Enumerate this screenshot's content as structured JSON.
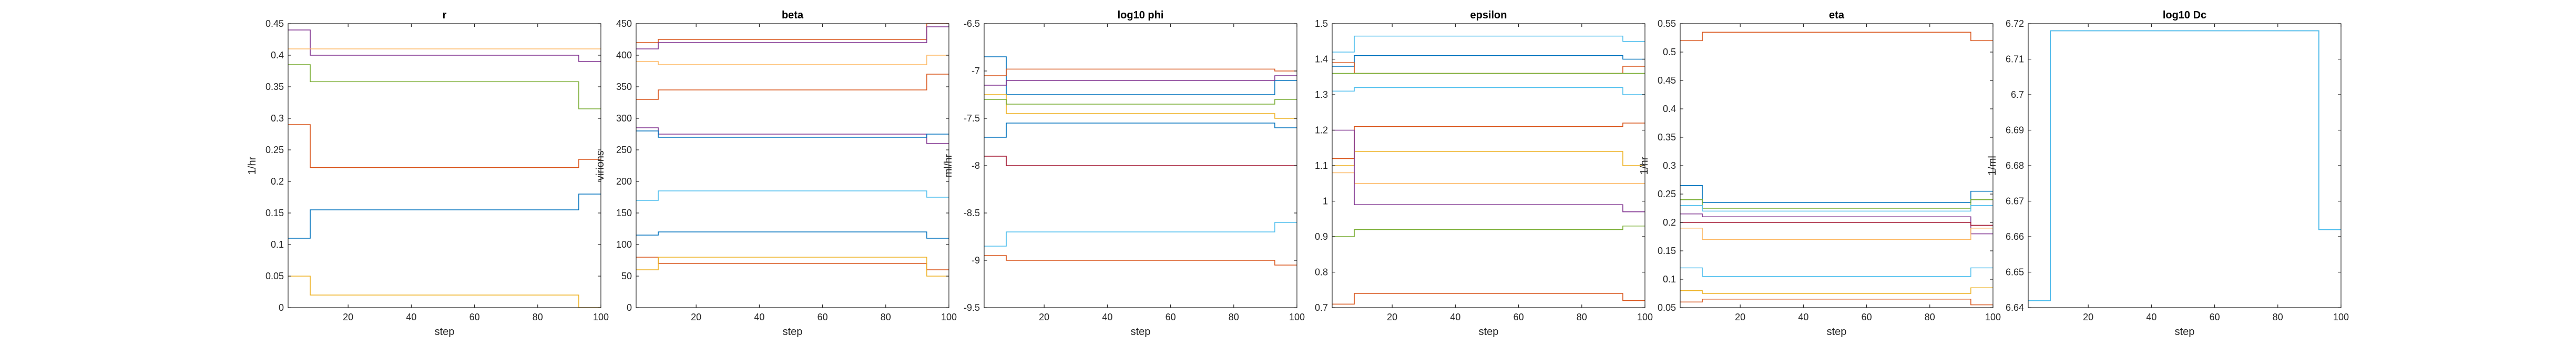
{
  "chart_data": [
    {
      "type": "line",
      "title": "r",
      "xlabel": "step",
      "ylabel": "1/hr",
      "xlim": [
        1,
        100
      ],
      "ylim": [
        0,
        0.45
      ],
      "xticks": [
        20,
        40,
        60,
        80,
        100
      ],
      "xtick_labels": [
        "20",
        "40",
        "60",
        "80",
        "100"
      ],
      "yticks": [
        0,
        0.05,
        0.1,
        0.15,
        0.2,
        0.25,
        0.3,
        0.35,
        0.4,
        0.45
      ],
      "ytick_labels": [
        "0",
        "0.05",
        "0.1",
        "0.15",
        "0.2",
        "0.25",
        "0.3",
        "0.35",
        "0.4",
        "0.45"
      ],
      "series": [
        {
          "color": "#0072BD",
          "x": [
            1,
            8,
            8,
            93,
            93,
            100
          ],
          "y": [
            0.11,
            0.11,
            0.155,
            0.155,
            0.18,
            0.18
          ]
        },
        {
          "color": "#D95319",
          "x": [
            1,
            8,
            8,
            93,
            93,
            100
          ],
          "y": [
            0.29,
            0.29,
            0.222,
            0.222,
            0.235,
            0.235
          ]
        },
        {
          "color": "#EDB120",
          "x": [
            1,
            8,
            8,
            93,
            93,
            100
          ],
          "y": [
            0.05,
            0.05,
            0.02,
            0.02,
            0.0,
            0.0
          ]
        },
        {
          "color": "#7E2F8E",
          "x": [
            1,
            8,
            8,
            93,
            93,
            100
          ],
          "y": [
            0.44,
            0.44,
            0.4,
            0.4,
            0.39,
            0.39
          ]
        },
        {
          "color": "#77AC30",
          "x": [
            1,
            8,
            8,
            93,
            93,
            100
          ],
          "y": [
            0.385,
            0.385,
            0.358,
            0.358,
            0.315,
            0.315
          ]
        },
        {
          "color": "#FDB863",
          "x": [
            1,
            8,
            8,
            93,
            93,
            100
          ],
          "y": [
            0.41,
            0.41,
            0.41,
            0.41,
            0.41,
            0.41
          ]
        }
      ]
    },
    {
      "type": "line",
      "title": "beta",
      "xlabel": "step",
      "ylabel": "virions",
      "xlim": [
        1,
        100
      ],
      "ylim": [
        0,
        450
      ],
      "xticks": [
        20,
        40,
        60,
        80,
        100
      ],
      "xtick_labels": [
        "20",
        "40",
        "60",
        "80",
        "100"
      ],
      "yticks": [
        0,
        50,
        100,
        150,
        200,
        250,
        300,
        350,
        400,
        450
      ],
      "ytick_labels": [
        "0",
        "50",
        "100",
        "150",
        "200",
        "250",
        "300",
        "350",
        "400",
        "450"
      ],
      "series": [
        {
          "color": "#D95319",
          "x": [
            1,
            8,
            8,
            93,
            93,
            100
          ],
          "y": [
            420,
            420,
            425,
            425,
            450,
            450
          ]
        },
        {
          "color": "#7E2F8E",
          "x": [
            1,
            8,
            8,
            93,
            93,
            100
          ],
          "y": [
            410,
            410,
            420,
            420,
            445,
            445
          ]
        },
        {
          "color": "#FDB863",
          "x": [
            1,
            8,
            8,
            93,
            93,
            100
          ],
          "y": [
            390,
            390,
            385,
            385,
            400,
            400
          ]
        },
        {
          "color": "#D95319",
          "x": [
            1,
            8,
            8,
            93,
            93,
            100
          ],
          "y": [
            330,
            330,
            345,
            345,
            370,
            370
          ]
        },
        {
          "color": "#7E2F8E",
          "x": [
            1,
            8,
            8,
            93,
            93,
            100
          ],
          "y": [
            285,
            285,
            275,
            275,
            260,
            260
          ]
        },
        {
          "color": "#0072BD",
          "x": [
            1,
            8,
            8,
            93,
            93,
            100
          ],
          "y": [
            280,
            280,
            270,
            270,
            275,
            275
          ]
        },
        {
          "color": "#4DBEEE",
          "x": [
            1,
            8,
            8,
            93,
            93,
            100
          ],
          "y": [
            170,
            170,
            185,
            185,
            175,
            175
          ]
        },
        {
          "color": "#0072BD",
          "x": [
            1,
            8,
            8,
            93,
            93,
            100
          ],
          "y": [
            115,
            115,
            120,
            120,
            110,
            110
          ]
        },
        {
          "color": "#D95319",
          "x": [
            1,
            8,
            8,
            93,
            93,
            100
          ],
          "y": [
            80,
            80,
            70,
            70,
            60,
            60
          ]
        },
        {
          "color": "#EDB120",
          "x": [
            1,
            8,
            8,
            93,
            93,
            100
          ],
          "y": [
            60,
            60,
            80,
            80,
            50,
            50
          ]
        }
      ]
    },
    {
      "type": "line",
      "title": "log10 phi",
      "xlabel": "step",
      "ylabel": "ml/hr",
      "xlim": [
        1,
        100
      ],
      "ylim": [
        -9.5,
        -6.5
      ],
      "xticks": [
        20,
        40,
        60,
        80,
        100
      ],
      "xtick_labels": [
        "20",
        "40",
        "60",
        "80",
        "100"
      ],
      "yticks": [
        -9.5,
        -9,
        -8.5,
        -8,
        -7.5,
        -7,
        -6.5
      ],
      "ytick_labels": [
        "-9.5",
        "-9",
        "-8.5",
        "-8",
        "-7.5",
        "-7",
        "-6.5"
      ],
      "series": [
        {
          "color": "#0072BD",
          "x": [
            1,
            8,
            8,
            93,
            93,
            100
          ],
          "y": [
            -6.85,
            -6.85,
            -7.25,
            -7.25,
            -7.1,
            -7.1
          ]
        },
        {
          "color": "#D95319",
          "x": [
            1,
            8,
            8,
            93,
            93,
            100
          ],
          "y": [
            -7.05,
            -7.05,
            -6.98,
            -6.98,
            -7.0,
            -7.0
          ]
        },
        {
          "color": "#7E2F8E",
          "x": [
            1,
            8,
            8,
            93,
            93,
            100
          ],
          "y": [
            -7.15,
            -7.15,
            -7.1,
            -7.1,
            -7.05,
            -7.05
          ]
        },
        {
          "color": "#EDB120",
          "x": [
            1,
            8,
            8,
            93,
            93,
            100
          ],
          "y": [
            -7.25,
            -7.25,
            -7.45,
            -7.45,
            -7.5,
            -7.5
          ]
        },
        {
          "color": "#77AC30",
          "x": [
            1,
            8,
            8,
            93,
            93,
            100
          ],
          "y": [
            -7.3,
            -7.3,
            -7.35,
            -7.35,
            -7.3,
            -7.3
          ]
        },
        {
          "color": "#0072BD",
          "x": [
            1,
            8,
            8,
            93,
            93,
            100
          ],
          "y": [
            -7.7,
            -7.7,
            -7.55,
            -7.55,
            -7.6,
            -7.6
          ]
        },
        {
          "color": "#A2142F",
          "x": [
            1,
            8,
            8,
            93,
            93,
            100
          ],
          "y": [
            -7.9,
            -7.9,
            -8.0,
            -8.0,
            -8.0,
            -8.0
          ]
        },
        {
          "color": "#4DBEEE",
          "x": [
            1,
            8,
            8,
            93,
            93,
            100
          ],
          "y": [
            -8.85,
            -8.85,
            -8.7,
            -8.7,
            -8.6,
            -8.6
          ]
        },
        {
          "color": "#D95319",
          "x": [
            1,
            8,
            8,
            93,
            93,
            100
          ],
          "y": [
            -8.95,
            -8.95,
            -9.0,
            -9.0,
            -9.05,
            -9.05
          ]
        }
      ]
    },
    {
      "type": "line",
      "title": "epsilon",
      "xlabel": "step",
      "ylabel": "",
      "xlim": [
        1,
        100
      ],
      "ylim": [
        0.7,
        1.5
      ],
      "xticks": [
        20,
        40,
        60,
        80,
        100
      ],
      "xtick_labels": [
        "20",
        "40",
        "60",
        "80",
        "100"
      ],
      "yticks": [
        0.7,
        0.8,
        0.9,
        1,
        1.1,
        1.2,
        1.3,
        1.4,
        1.5
      ],
      "ytick_labels": [
        "0.7",
        "0.8",
        "0.9",
        "1",
        "1.1",
        "1.2",
        "1.3",
        "1.4",
        "1.5"
      ],
      "series": [
        {
          "color": "#4DBEEE",
          "x": [
            1,
            8,
            8,
            93,
            93,
            100
          ],
          "y": [
            1.42,
            1.42,
            1.465,
            1.465,
            1.45,
            1.45
          ]
        },
        {
          "color": "#0072BD",
          "x": [
            1,
            8,
            8,
            93,
            93,
            100
          ],
          "y": [
            1.38,
            1.38,
            1.41,
            1.41,
            1.4,
            1.4
          ]
        },
        {
          "color": "#D95319",
          "x": [
            1,
            8,
            8,
            93,
            93,
            100
          ],
          "y": [
            1.39,
            1.39,
            1.36,
            1.36,
            1.38,
            1.38
          ]
        },
        {
          "color": "#77AC30",
          "x": [
            1,
            8,
            8,
            93,
            93,
            100
          ],
          "y": [
            1.36,
            1.36,
            1.36,
            1.36,
            1.36,
            1.36
          ]
        },
        {
          "color": "#4DBEEE",
          "x": [
            1,
            8,
            8,
            93,
            93,
            100
          ],
          "y": [
            1.31,
            1.31,
            1.32,
            1.32,
            1.3,
            1.3
          ]
        },
        {
          "color": "#D95319",
          "x": [
            1,
            8,
            8,
            93,
            93,
            100
          ],
          "y": [
            1.12,
            1.12,
            1.21,
            1.21,
            1.22,
            1.22
          ]
        },
        {
          "color": "#EDB120",
          "x": [
            1,
            8,
            8,
            93,
            93,
            100
          ],
          "y": [
            1.1,
            1.1,
            1.14,
            1.14,
            1.1,
            1.1
          ]
        },
        {
          "color": "#FDB863",
          "x": [
            1,
            8,
            8,
            93,
            93,
            100
          ],
          "y": [
            1.08,
            1.08,
            1.05,
            1.05,
            1.05,
            1.05
          ]
        },
        {
          "color": "#7E2F8E",
          "x": [
            1,
            8,
            8,
            93,
            93,
            100
          ],
          "y": [
            1.2,
            1.2,
            0.99,
            0.99,
            0.97,
            0.97
          ]
        },
        {
          "color": "#77AC30",
          "x": [
            1,
            8,
            8,
            93,
            93,
            100
          ],
          "y": [
            0.9,
            0.9,
            0.92,
            0.92,
            0.93,
            0.93
          ]
        },
        {
          "color": "#D95319",
          "x": [
            1,
            8,
            8,
            93,
            93,
            100
          ],
          "y": [
            0.71,
            0.71,
            0.74,
            0.74,
            0.72,
            0.72
          ]
        }
      ]
    },
    {
      "type": "line",
      "title": "eta",
      "xlabel": "step",
      "ylabel": "1/hr",
      "xlim": [
        1,
        100
      ],
      "ylim": [
        0.05,
        0.55
      ],
      "xticks": [
        20,
        40,
        60,
        80,
        100
      ],
      "xtick_labels": [
        "20",
        "40",
        "60",
        "80",
        "100"
      ],
      "yticks": [
        0.05,
        0.1,
        0.15,
        0.2,
        0.25,
        0.3,
        0.35,
        0.4,
        0.45,
        0.5,
        0.55
      ],
      "ytick_labels": [
        "0.05",
        "0.1",
        "0.15",
        "0.2",
        "0.25",
        "0.3",
        "0.35",
        "0.4",
        "0.45",
        "0.5",
        "0.55"
      ],
      "series": [
        {
          "color": "#D95319",
          "x": [
            1,
            8,
            8,
            93,
            93,
            100
          ],
          "y": [
            0.52,
            0.52,
            0.535,
            0.535,
            0.52,
            0.52
          ]
        },
        {
          "color": "#0072BD",
          "x": [
            1,
            8,
            8,
            93,
            93,
            100
          ],
          "y": [
            0.265,
            0.265,
            0.235,
            0.235,
            0.255,
            0.255
          ]
        },
        {
          "color": "#77AC30",
          "x": [
            1,
            8,
            8,
            93,
            93,
            100
          ],
          "y": [
            0.24,
            0.24,
            0.225,
            0.225,
            0.24,
            0.24
          ]
        },
        {
          "color": "#4DBEEE",
          "x": [
            1,
            8,
            8,
            93,
            93,
            100
          ],
          "y": [
            0.23,
            0.23,
            0.22,
            0.22,
            0.23,
            0.23
          ]
        },
        {
          "color": "#7E2F8E",
          "x": [
            1,
            8,
            8,
            93,
            93,
            100
          ],
          "y": [
            0.215,
            0.215,
            0.21,
            0.21,
            0.18,
            0.18
          ]
        },
        {
          "color": "#A2142F",
          "x": [
            1,
            8,
            8,
            93,
            93,
            100
          ],
          "y": [
            0.2,
            0.2,
            0.2,
            0.2,
            0.195,
            0.195
          ]
        },
        {
          "color": "#FDB863",
          "x": [
            1,
            8,
            8,
            93,
            93,
            100
          ],
          "y": [
            0.19,
            0.19,
            0.17,
            0.17,
            0.19,
            0.19
          ]
        },
        {
          "color": "#4DBEEE",
          "x": [
            1,
            8,
            8,
            93,
            93,
            100
          ],
          "y": [
            0.12,
            0.12,
            0.105,
            0.105,
            0.12,
            0.12
          ]
        },
        {
          "color": "#EDB120",
          "x": [
            1,
            8,
            8,
            93,
            93,
            100
          ],
          "y": [
            0.08,
            0.08,
            0.075,
            0.075,
            0.085,
            0.085
          ]
        },
        {
          "color": "#D95319",
          "x": [
            1,
            8,
            8,
            93,
            93,
            100
          ],
          "y": [
            0.06,
            0.06,
            0.065,
            0.065,
            0.055,
            0.055
          ]
        }
      ]
    },
    {
      "type": "line",
      "title": "log10 Dc",
      "xlabel": "step",
      "ylabel": "1/ml",
      "xlim": [
        1,
        100
      ],
      "ylim": [
        6.64,
        6.72
      ],
      "xticks": [
        20,
        40,
        60,
        80,
        100
      ],
      "xtick_labels": [
        "20",
        "40",
        "60",
        "80",
        "100"
      ],
      "yticks": [
        6.64,
        6.65,
        6.66,
        6.67,
        6.68,
        6.69,
        6.7,
        6.71,
        6.72
      ],
      "ytick_labels": [
        "6.64",
        "6.65",
        "6.66",
        "6.67",
        "6.68",
        "6.69",
        "6.7",
        "6.71",
        "6.72"
      ],
      "series": [
        {
          "color": "#0072BD",
          "x": [
            1,
            8,
            8,
            93,
            93,
            100
          ],
          "y": [
            6.642,
            6.642,
            6.718,
            6.718,
            6.662,
            6.662
          ]
        },
        {
          "color": "#4DBEEE",
          "x": [
            1,
            8,
            8,
            93,
            93,
            100
          ],
          "y": [
            6.642,
            6.642,
            6.718,
            6.718,
            6.662,
            6.662
          ]
        }
      ]
    }
  ]
}
